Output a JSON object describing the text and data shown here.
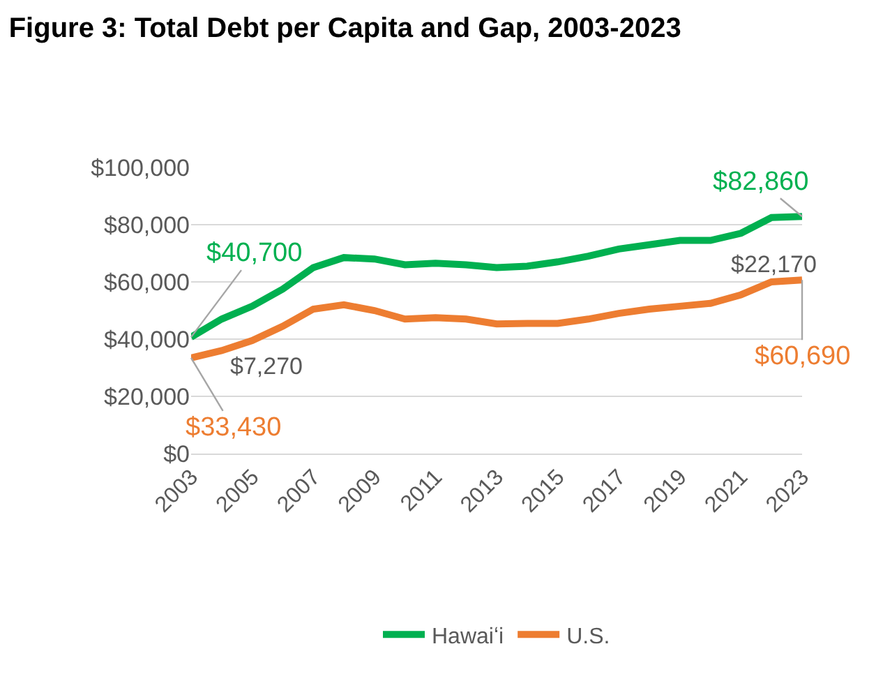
{
  "chart_data": {
    "type": "line",
    "title": "Figure 3: Total Debt per Capita and Gap, 2003-2023",
    "x": [
      2003,
      2004,
      2005,
      2006,
      2007,
      2008,
      2009,
      2010,
      2011,
      2012,
      2013,
      2014,
      2015,
      2016,
      2017,
      2018,
      2019,
      2020,
      2021,
      2022,
      2023
    ],
    "series": [
      {
        "name": "Hawaiʻi",
        "color": "#00b050",
        "values": [
          40700,
          47000,
          51500,
          57500,
          65000,
          68500,
          68000,
          66000,
          66500,
          66000,
          65000,
          65500,
          67000,
          69000,
          71500,
          73000,
          74500,
          74500,
          77000,
          82500,
          82860
        ],
        "value_labels": [
          "$40,700",
          null,
          null,
          null,
          null,
          null,
          null,
          null,
          null,
          null,
          null,
          null,
          null,
          null,
          null,
          null,
          null,
          null,
          null,
          null,
          "$82,860"
        ]
      },
      {
        "name": "U.S.",
        "color": "#ed7d31",
        "values": [
          33430,
          36000,
          39500,
          44500,
          50500,
          52000,
          50000,
          47000,
          47500,
          47000,
          45300,
          45500,
          45500,
          47000,
          49000,
          50500,
          51500,
          52500,
          55500,
          60000,
          60690
        ],
        "value_labels": [
          "$33,430",
          null,
          null,
          null,
          null,
          null,
          null,
          null,
          null,
          null,
          null,
          null,
          null,
          null,
          null,
          null,
          null,
          null,
          null,
          null,
          "$60,690"
        ]
      }
    ],
    "annotations": [
      "$7,270",
      "$22,170"
    ],
    "xlim": [
      2003,
      2023
    ],
    "xticks": [
      2003,
      2005,
      2007,
      2009,
      2011,
      2013,
      2015,
      2017,
      2019,
      2021,
      2023
    ],
    "ylim": [
      0,
      100000
    ],
    "yticks": [
      {
        "value": 0,
        "label": "$0"
      },
      {
        "value": 20000,
        "label": "$20,000"
      },
      {
        "value": 40000,
        "label": "$40,000"
      },
      {
        "value": 60000,
        "label": "$60,000"
      },
      {
        "value": 80000,
        "label": "$80,000"
      },
      {
        "value": 100000,
        "label": "$100,000"
      }
    ],
    "grid": "y",
    "legend": "bottom",
    "marker": "none",
    "line_style": "solid"
  }
}
